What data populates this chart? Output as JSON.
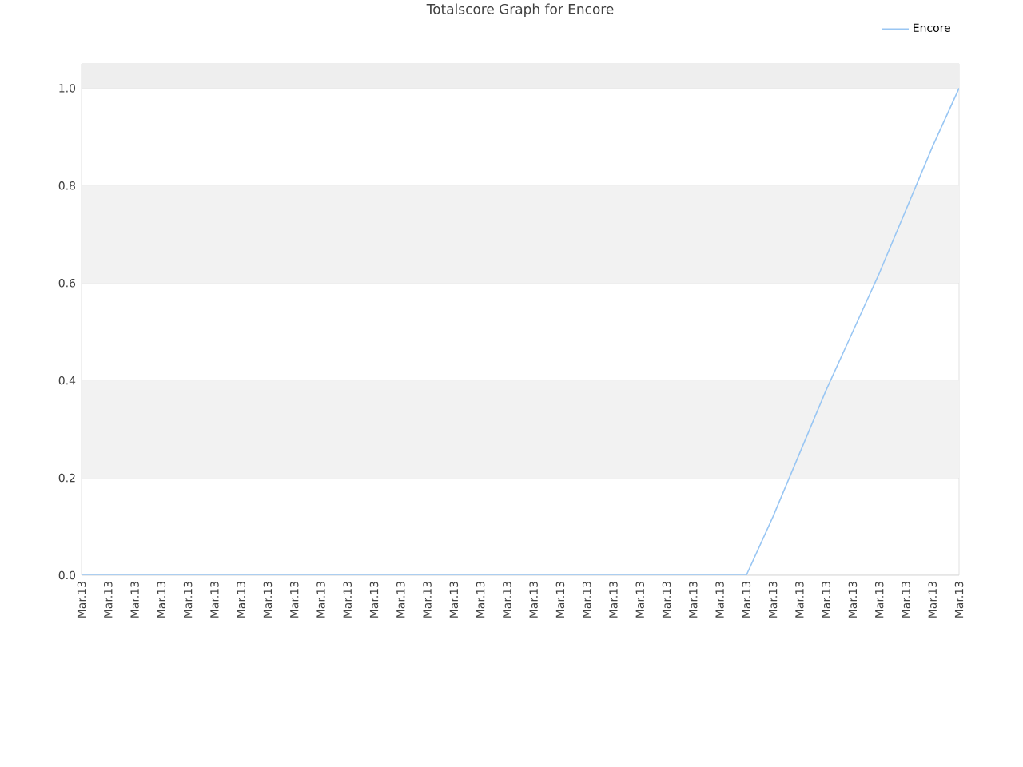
{
  "chart_data": {
    "type": "line",
    "title": "Totalscore Graph for Encore",
    "categories": [
      "Mar.13",
      "Mar.13",
      "Mar.13",
      "Mar.13",
      "Mar.13",
      "Mar.13",
      "Mar.13",
      "Mar.13",
      "Mar.13",
      "Mar.13",
      "Mar.13",
      "Mar.13",
      "Mar.13",
      "Mar.13",
      "Mar.13",
      "Mar.13",
      "Mar.13",
      "Mar.13",
      "Mar.13",
      "Mar.13",
      "Mar.13",
      "Mar.13",
      "Mar.13",
      "Mar.13",
      "Mar.13",
      "Mar.13",
      "Mar.13",
      "Mar.13",
      "Mar.13",
      "Mar.13",
      "Mar.13",
      "Mar.13",
      "Mar.13",
      "Mar.13"
    ],
    "series": [
      {
        "name": "Encore",
        "color": "#99c6f3",
        "values": [
          0,
          0,
          0,
          0,
          0,
          0,
          0,
          0,
          0,
          0,
          0,
          0,
          0,
          0,
          0,
          0,
          0,
          0,
          0,
          0,
          0,
          0,
          0,
          0,
          0,
          0,
          0.12,
          0.25,
          0.38,
          0.5,
          0.62,
          0.75,
          0.88,
          1
        ]
      }
    ],
    "ylim": [
      0,
      1.05
    ],
    "yticks": [
      {
        "value": 0,
        "label": "0.0"
      },
      {
        "value": 0.2,
        "label": "0.2"
      },
      {
        "value": 0.4,
        "label": "0.4"
      },
      {
        "value": 0.6,
        "label": "0.6"
      },
      {
        "value": 0.8,
        "label": "0.8"
      },
      {
        "value": 1,
        "label": "1.0"
      }
    ],
    "grid": "y",
    "bands": [
      {
        "axis": "y",
        "from": 0.2,
        "to": 0.4,
        "color": "#f2f2f2"
      },
      {
        "axis": "y",
        "from": 0.6,
        "to": 0.8,
        "color": "#f2f2f2"
      },
      {
        "axis": "y",
        "from": 1,
        "to": 1.05,
        "color": "#eeeeee"
      }
    ],
    "legend": "top right",
    "marker": "none",
    "line_style": "solid"
  }
}
